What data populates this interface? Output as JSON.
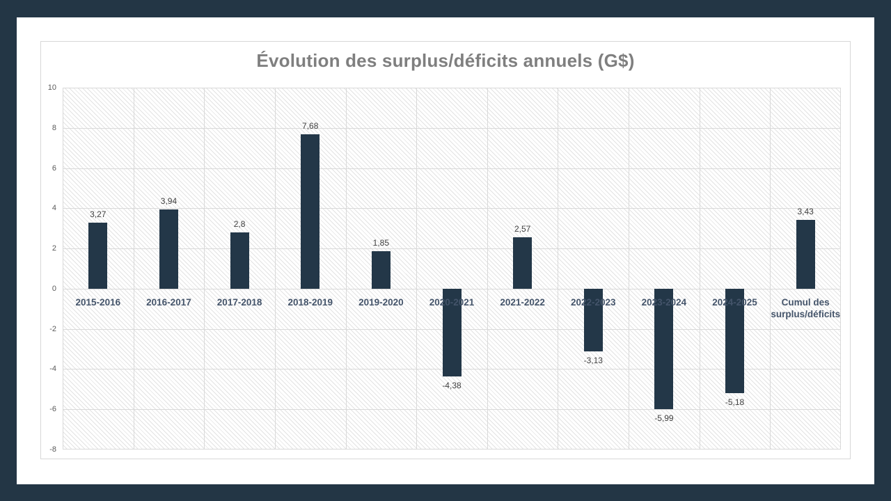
{
  "page": {
    "frame_color": "#233645",
    "panel_color": "#ffffff"
  },
  "chart_data": {
    "type": "bar",
    "title": "Évolution des surplus/déficits annuels (G$)",
    "categories": [
      "2015-2016",
      "2016-2017",
      "2017-2018",
      "2018-2019",
      "2019-2020",
      "2020-2021",
      "2021-2022",
      "2022-2023",
      "2023-2024",
      "2024-2025",
      "Cumul des surplus/déficits"
    ],
    "values": [
      3.27,
      3.94,
      2.8,
      7.68,
      1.85,
      -4.38,
      2.57,
      -3.13,
      -5.99,
      -5.18,
      3.43
    ],
    "value_labels": [
      "3,27",
      "3,94",
      "2,8",
      "7,68",
      "1,85",
      "-4,38",
      "2,57",
      "-3,13",
      "-5,99",
      "-5,18",
      "3,43"
    ],
    "xlabel": "",
    "ylabel": "",
    "ylim": [
      -8,
      10
    ],
    "yticks": [
      10,
      8,
      6,
      4,
      2,
      0,
      -2,
      -4,
      -6,
      -8
    ],
    "grid": true,
    "legend": false,
    "colors": {
      "bar": "#233748",
      "title": "#7f7f7f",
      "gridline": "#d9d9d9",
      "tick_label": "#595959",
      "category_label": "#44546a",
      "value_label": "#3f3f3f"
    }
  }
}
